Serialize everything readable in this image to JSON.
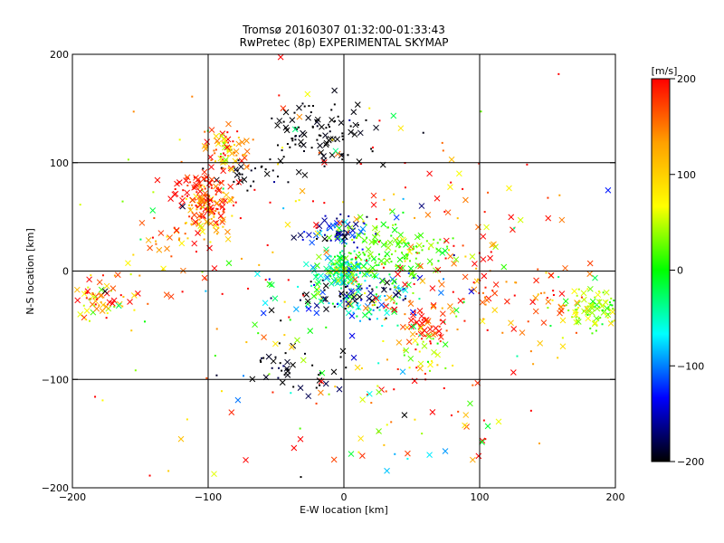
{
  "chart_data": {
    "type": "scatter",
    "title": "Tromsø 20160307 01:32:00-01:33:43",
    "subtitle": "RwPretec (8p) EXPERIMENTAL SKYMAP",
    "xlabel": "E-W location [km]",
    "ylabel": "N-S location [km]",
    "xlim": [
      -200,
      200
    ],
    "ylim": [
      -200,
      200
    ],
    "xticks": [
      -200,
      -100,
      0,
      100,
      200
    ],
    "yticks": [
      -200,
      -100,
      0,
      100,
      200
    ],
    "x_tick_labels": [
      "−200",
      "−100",
      "0",
      "100",
      "200"
    ],
    "y_tick_labels": [
      "−200",
      "−100",
      "0",
      "100",
      "200"
    ],
    "grid": true,
    "colorbar": {
      "label": "[m/s]",
      "range": [
        -200,
        200
      ],
      "ticks": [
        200,
        100,
        0,
        -100,
        -200
      ],
      "tick_labels": [
        "200",
        "100",
        "0",
        "−100",
        "−200"
      ],
      "colors": [
        "#ff0000",
        "#ffa000",
        "#ffff00",
        "#00ff00",
        "#00ffff",
        "#0000ff",
        "#000000"
      ]
    },
    "marker_types": [
      "x",
      "dot"
    ],
    "clusters": [
      {
        "x": 0,
        "y": 0,
        "sx": 8,
        "sy": 8,
        "n": 170,
        "v": -20,
        "vs": 45
      },
      {
        "x": 10,
        "y": -25,
        "sx": 28,
        "sy": 12,
        "n": 170,
        "v": -90,
        "vs": 90
      },
      {
        "x": 35,
        "y": 20,
        "sx": 20,
        "sy": 15,
        "n": 140,
        "v": 20,
        "vs": 15
      },
      {
        "x": -5,
        "y": 35,
        "sx": 15,
        "sy": 8,
        "n": 60,
        "v": -150,
        "vs": 40
      },
      {
        "x": -20,
        "y": 125,
        "sx": 22,
        "sy": 15,
        "n": 100,
        "v": -200,
        "vs": 5
      },
      {
        "x": -70,
        "y": 90,
        "sx": 15,
        "sy": 8,
        "n": 30,
        "v": -200,
        "vs": 5
      },
      {
        "x": -100,
        "y": 58,
        "sx": 10,
        "sy": 9,
        "n": 120,
        "v": 150,
        "vs": 55
      },
      {
        "x": -110,
        "y": 80,
        "sx": 12,
        "sy": 6,
        "n": 50,
        "v": 190,
        "vs": 15
      },
      {
        "x": -88,
        "y": 112,
        "sx": 8,
        "sy": 9,
        "n": 70,
        "v": 140,
        "vs": 55
      },
      {
        "x": -120,
        "y": 35,
        "sx": 20,
        "sy": 10,
        "n": 30,
        "v": 140,
        "vs": 60
      },
      {
        "x": -185,
        "y": -28,
        "sx": 8,
        "sy": 10,
        "n": 45,
        "v": 140,
        "vs": 70
      },
      {
        "x": -160,
        "y": -25,
        "sx": 15,
        "sy": 12,
        "n": 20,
        "v": 90,
        "vs": 100
      },
      {
        "x": 185,
        "y": -35,
        "sx": 14,
        "sy": 10,
        "n": 100,
        "v": 30,
        "vs": 25
      },
      {
        "x": 60,
        "y": -50,
        "sx": 10,
        "sy": 10,
        "n": 55,
        "v": 180,
        "vs": 30
      },
      {
        "x": 60,
        "y": -70,
        "sx": 10,
        "sy": 10,
        "n": 25,
        "v": 40,
        "vs": 40
      },
      {
        "x": -40,
        "y": -90,
        "sx": 25,
        "sy": 12,
        "n": 45,
        "v": -200,
        "vs": 20
      },
      {
        "x": 120,
        "y": -25,
        "sx": 25,
        "sy": 20,
        "n": 60,
        "v": 180,
        "vs": 40
      },
      {
        "x": 80,
        "y": 40,
        "sx": 55,
        "sy": 40,
        "n": 70,
        "v": 170,
        "vs": 60
      },
      {
        "x": 0,
        "y": 0,
        "sx": 120,
        "sy": 90,
        "n": 260,
        "v": 120,
        "vs": 120
      },
      {
        "x": 60,
        "y": -140,
        "sx": 40,
        "sy": 30,
        "n": 40,
        "v": 80,
        "vs": 140
      }
    ]
  }
}
